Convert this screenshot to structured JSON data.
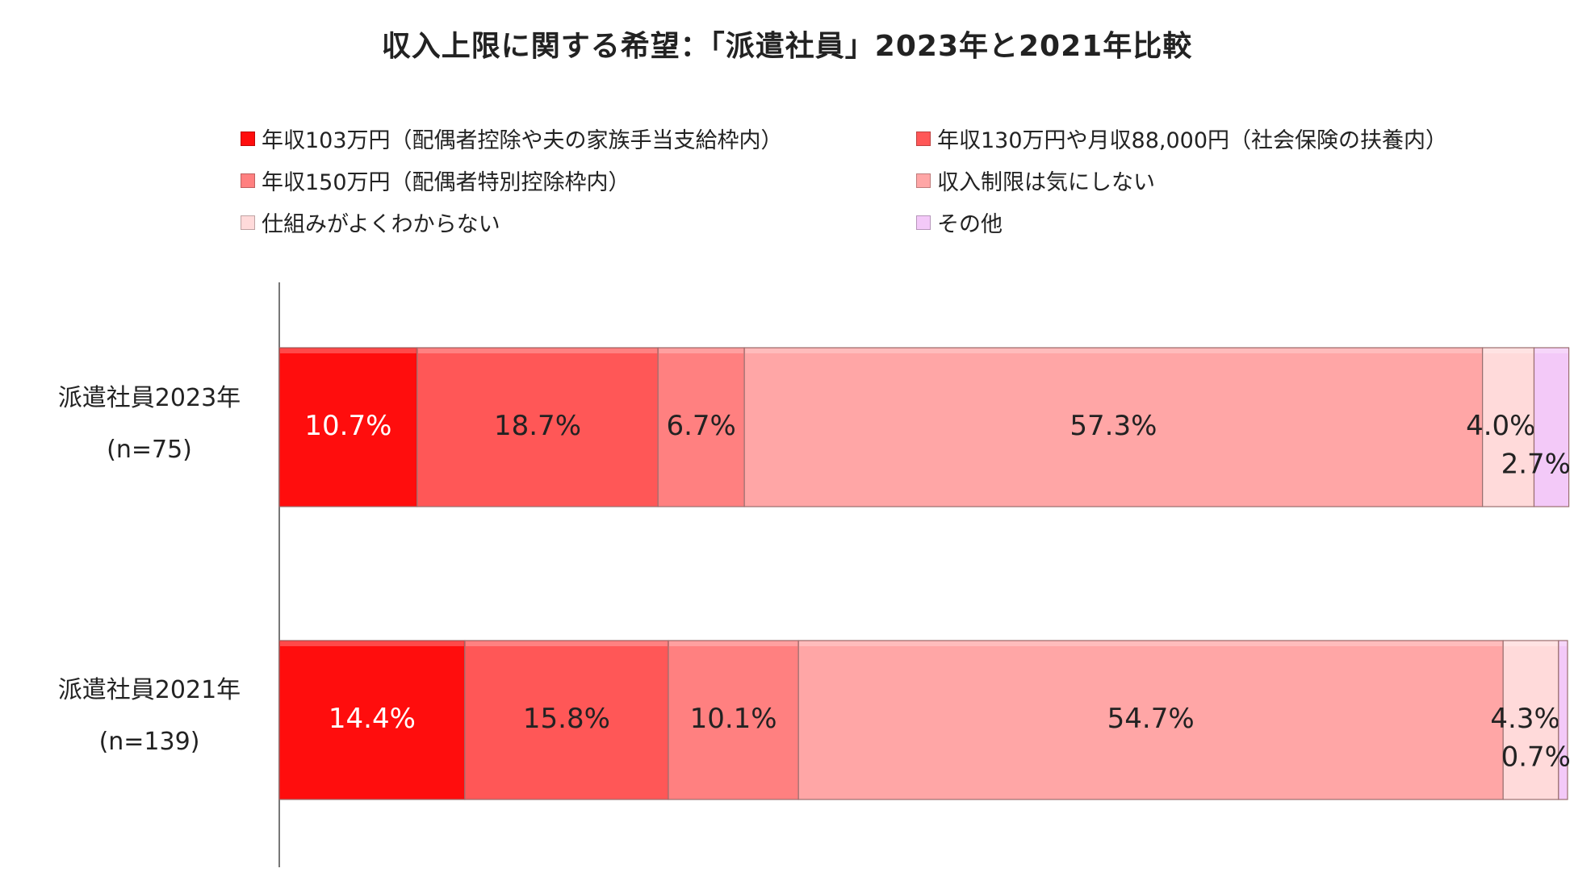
{
  "chart_data": {
    "type": "bar",
    "orientation": "horizontal",
    "stacked": true,
    "title": "収入上限に関する希望：「派遣社員」2023年と2021年比較",
    "categories": [
      {
        "name": "派遣社員2023年",
        "n": "(n=75)"
      },
      {
        "name": "派遣社員2021年",
        "n": "(n=139)"
      }
    ],
    "series": [
      {
        "name": "年収103万円（配偶者控除や夫の家族手当支給枠内）",
        "color": "#ff0d0d",
        "values": [
          10.7,
          14.4
        ],
        "labels": [
          "10.7%",
          "14.4%"
        ]
      },
      {
        "name": "年収130万円や月収88,000円（社会保険の扶養内）",
        "color": "#ff5757",
        "values": [
          18.7,
          15.8
        ],
        "labels": [
          "18.7%",
          "15.8%"
        ]
      },
      {
        "name": "年収150万円（配偶者特別控除枠内）",
        "color": "#ff8080",
        "values": [
          6.7,
          10.1
        ],
        "labels": [
          "6.7%",
          "10.1%"
        ]
      },
      {
        "name": "収入制限は気にしない",
        "color": "#ffa6a6",
        "values": [
          57.3,
          54.7
        ],
        "labels": [
          "57.3%",
          "54.7%"
        ]
      },
      {
        "name": "仕組みがよくわからない",
        "color": "#ffdada",
        "values": [
          4.0,
          4.3
        ],
        "labels": [
          "4.0%",
          "4.3%"
        ]
      },
      {
        "name": "その他",
        "color": "#f3c9f8",
        "values": [
          2.7,
          0.7
        ],
        "labels": [
          "2.7%",
          "0.7%"
        ]
      }
    ],
    "xlim": [
      0,
      100
    ],
    "legend_position": "top",
    "grid": false
  }
}
